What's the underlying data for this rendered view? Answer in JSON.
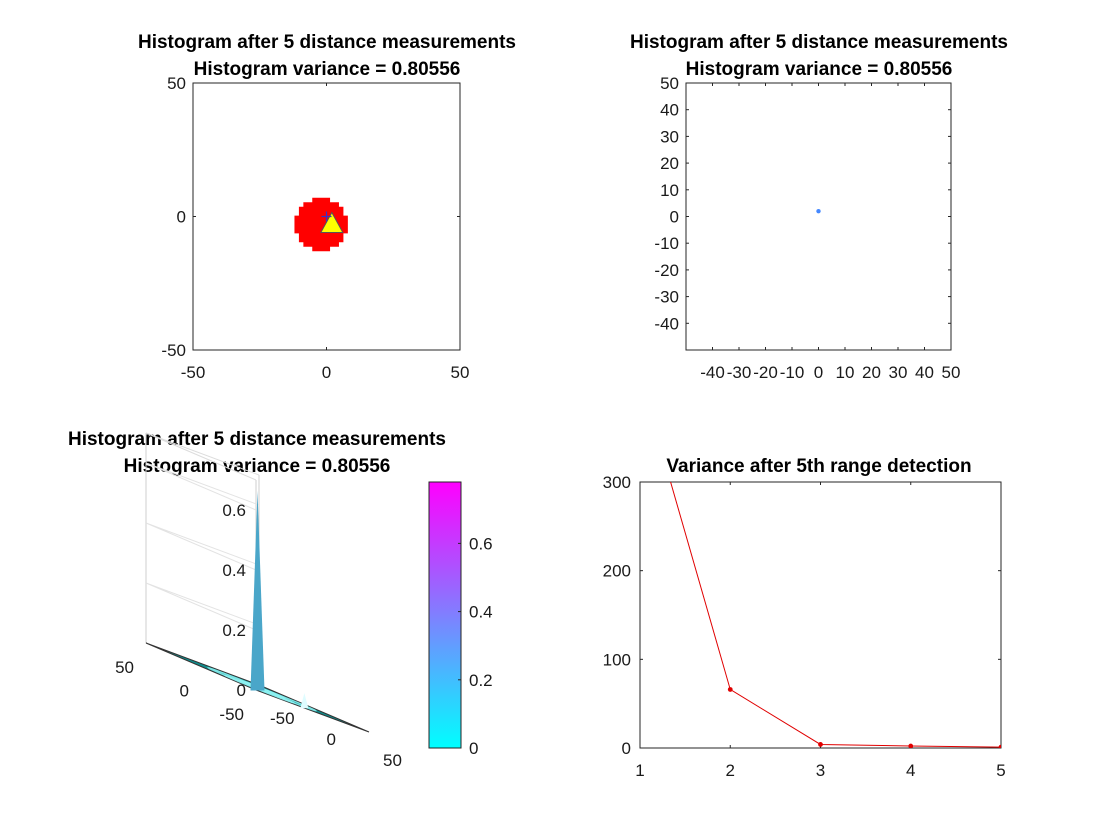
{
  "figure": {
    "background": "#ffffff"
  },
  "chart_data": [
    {
      "type": "heatmap",
      "title": "Histogram after 5  distance measurements",
      "subtitle": "Histogram variance = 0.80556",
      "xlim": [
        -50,
        50
      ],
      "ylim": [
        -50,
        50
      ],
      "xticks": [
        "-50",
        "0",
        "50"
      ],
      "yticks": [
        "50",
        "0",
        "-50"
      ],
      "grid": false,
      "blob": {
        "center": [
          -2,
          -3
        ],
        "radius": 10,
        "color": "#ff0000"
      },
      "markers": [
        {
          "shape": "triangle",
          "x": 2,
          "y": -3,
          "color": "#ffff00"
        },
        {
          "shape": "plus",
          "x": 0,
          "y": 0,
          "color": "#3333cc"
        }
      ]
    },
    {
      "type": "scatter",
      "title": "Histogram after 5  distance measurements",
      "subtitle": "Histogram variance = 0.80556",
      "xlim": [
        -50,
        50
      ],
      "ylim": [
        -50,
        50
      ],
      "xticks": [
        "-40",
        "-30",
        "-20",
        "-10",
        "0",
        "10",
        "20",
        "30",
        "40",
        "50"
      ],
      "yticks": [
        "50",
        "40",
        "30",
        "20",
        "10",
        "0",
        "-10",
        "-20",
        "-30",
        "-40"
      ],
      "grid": false,
      "points": [
        {
          "x": 0,
          "y": 2,
          "color": "#4488ff"
        }
      ]
    },
    {
      "type": "surface",
      "title": "Histogram after 5  distance measurements",
      "subtitle": "Histogram variance = 0.80556",
      "xlim": [
        -50,
        50
      ],
      "ylim": [
        -50,
        50
      ],
      "zlim": [
        0,
        0.7
      ],
      "xticks": [
        "-50",
        "0",
        "50"
      ],
      "yticks": [
        "-50",
        "0",
        "50"
      ],
      "zticks": [
        "0",
        "0.2",
        "0.4",
        "0.6"
      ],
      "peak": {
        "x": 0,
        "y": 0,
        "z": 0.78
      },
      "colorbar": {
        "min": 0,
        "max": 0.78,
        "ticks": [
          "0",
          "0.2",
          "0.4",
          "0.6"
        ],
        "colors": [
          "#00ffff",
          "#ff00ff"
        ]
      }
    },
    {
      "type": "line",
      "title": "Variance after 5th  range detection",
      "x": [
        1,
        2,
        3,
        4,
        5
      ],
      "y": [
        420,
        66,
        4,
        2.2,
        1
      ],
      "xlim": [
        1,
        5
      ],
      "ylim": [
        0,
        300
      ],
      "xticks": [
        "1",
        "2",
        "3",
        "4",
        "5"
      ],
      "yticks": [
        "0",
        "100",
        "200",
        "300"
      ],
      "color": "#e00000",
      "grid": false
    }
  ]
}
